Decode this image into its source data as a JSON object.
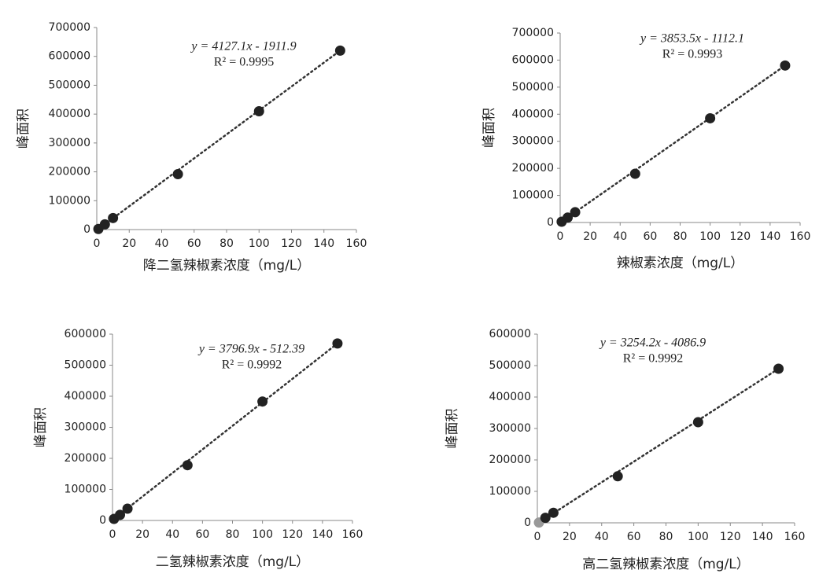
{
  "chart_data": [
    {
      "type": "scatter",
      "x": [
        1,
        5,
        10,
        50,
        100,
        150
      ],
      "y": [
        2000,
        18000,
        40000,
        192000,
        410000,
        620000
      ],
      "color": "#222222",
      "equation": "y = 4127.1x - 1911.9",
      "r2": "R² = 0.9995",
      "xlabel": "降二氢辣椒素浓度（mg/L）",
      "ylabel": "峰面积",
      "xlim": [
        0,
        160
      ],
      "xticks": [
        0,
        20,
        40,
        60,
        80,
        100,
        120,
        140,
        160
      ],
      "ylim": [
        0,
        700000
      ],
      "yticks": [
        0,
        100000,
        200000,
        300000,
        400000,
        500000,
        600000,
        700000
      ]
    },
    {
      "type": "scatter",
      "x": [
        1,
        5,
        10,
        50,
        100,
        150
      ],
      "y": [
        3000,
        18000,
        38000,
        180000,
        385000,
        580000
      ],
      "color": "#222222",
      "equation": "y = 3853.5x - 1112.1",
      "r2": "R² = 0.9993",
      "xlabel": "辣椒素浓度（mg/L）",
      "ylabel": "峰面积",
      "xlim": [
        0,
        160
      ],
      "xticks": [
        0,
        20,
        40,
        60,
        80,
        100,
        120,
        140,
        160
      ],
      "ylim": [
        0,
        700000
      ],
      "yticks": [
        0,
        100000,
        200000,
        300000,
        400000,
        500000,
        600000,
        700000
      ]
    },
    {
      "type": "scatter",
      "x": [
        1,
        5,
        10,
        50,
        100,
        150
      ],
      "y": [
        5000,
        18000,
        38000,
        178000,
        383000,
        570000
      ],
      "color": "#222222",
      "equation": "y = 3796.9x - 512.39",
      "r2": "R² = 0.9992",
      "xlabel": "二氢辣椒素浓度（mg/L）",
      "ylabel": "峰面积",
      "xlim": [
        0,
        160
      ],
      "xticks": [
        0,
        20,
        40,
        60,
        80,
        100,
        120,
        140,
        160
      ],
      "ylim": [
        0,
        600000
      ],
      "yticks": [
        0,
        100000,
        200000,
        300000,
        400000,
        500000,
        600000
      ]
    },
    {
      "type": "scatter",
      "x": [
        1,
        5,
        10,
        50,
        100,
        150
      ],
      "y": [
        1000,
        16000,
        32000,
        148000,
        320000,
        490000
      ],
      "color": "#222222",
      "point_colors": [
        "#999999",
        "#222222",
        "#222222",
        "#222222",
        "#222222",
        "#222222"
      ],
      "equation": "y = 3254.2x - 4086.9",
      "r2": "R² = 0.9992",
      "xlabel": "高二氢辣椒素浓度（mg/L）",
      "ylabel": "峰面积",
      "xlim": [
        0,
        160
      ],
      "xticks": [
        0,
        20,
        40,
        60,
        80,
        100,
        120,
        140,
        160
      ],
      "ylim": [
        0,
        600000
      ],
      "yticks": [
        0,
        100000,
        200000,
        300000,
        400000,
        500000,
        600000
      ]
    }
  ]
}
